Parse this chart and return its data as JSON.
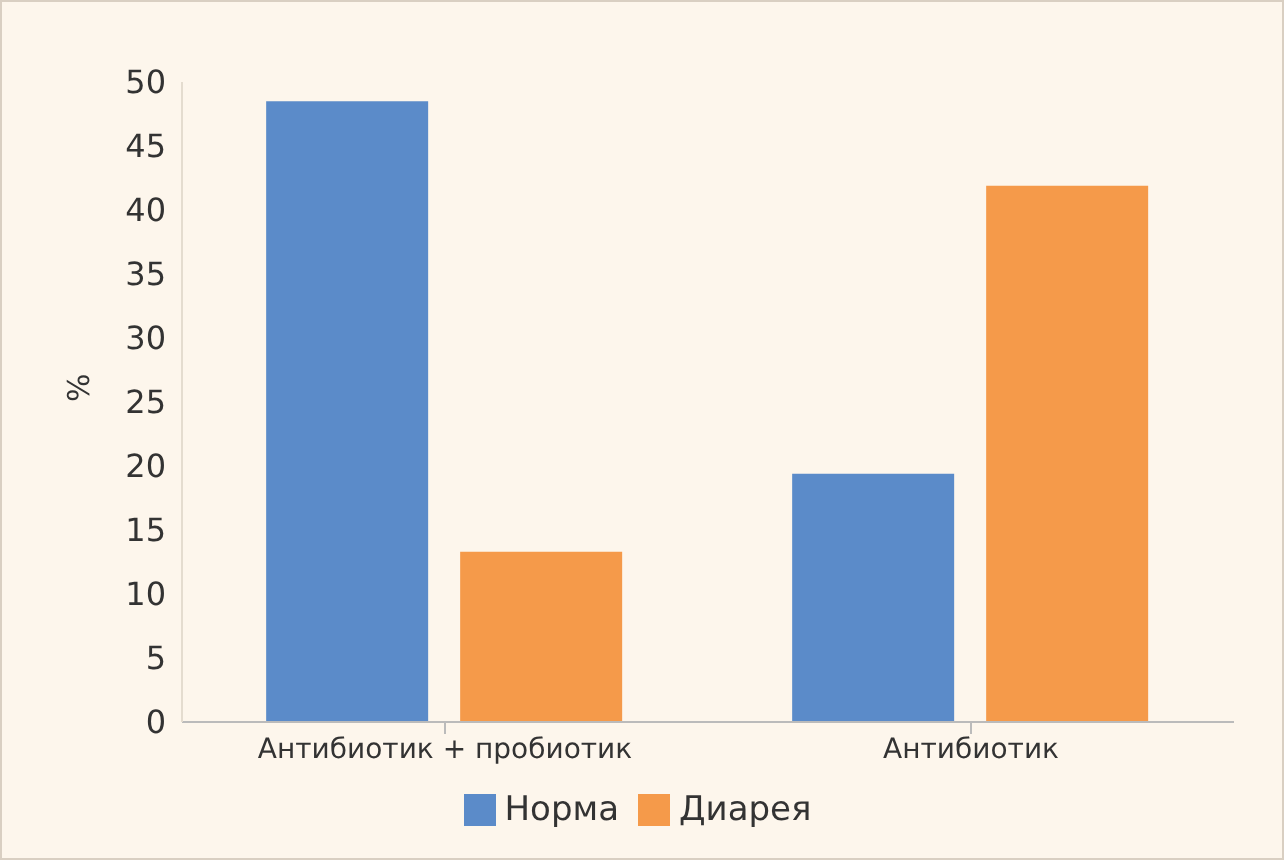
{
  "chart_data": {
    "type": "bar",
    "ylabel": "%",
    "categories": [
      "Антибиотик + пробиотик",
      "Антибиотик"
    ],
    "series": [
      {
        "name": "Норма",
        "color": "#5b8bc9",
        "values": [
          48.5,
          19.4
        ]
      },
      {
        "name": "Диарея",
        "color": "#f59a4a",
        "values": [
          13.3,
          41.9
        ]
      }
    ],
    "ylim": [
      0,
      50
    ],
    "yticks": [
      0,
      5,
      10,
      15,
      20,
      25,
      30,
      35,
      40,
      45,
      50
    ],
    "grid": false,
    "legend": "bottom"
  }
}
